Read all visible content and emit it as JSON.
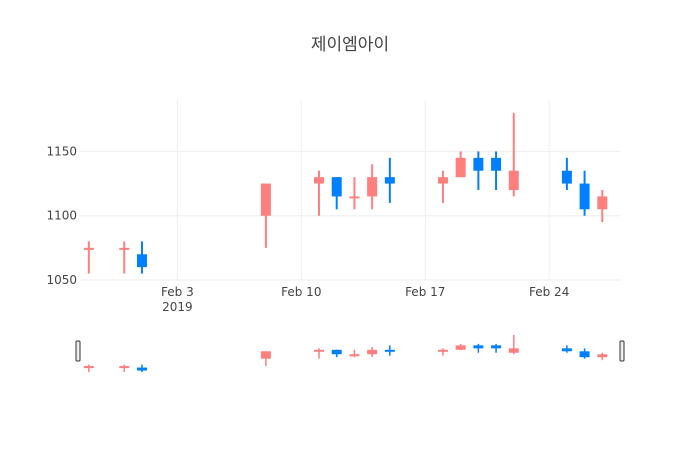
{
  "chart_data": {
    "type": "candlestick",
    "title": "제이엠아이",
    "xlabel": "",
    "ylabel": "",
    "x_range": [
      "2019-01-29",
      "2019-02-28"
    ],
    "ylim": [
      1050,
      1190
    ],
    "x_ticks": [
      {
        "date": "2019-02-03",
        "label": "Feb 3",
        "sublabel": "2019"
      },
      {
        "date": "2019-02-10",
        "label": "Feb 10",
        "sublabel": ""
      },
      {
        "date": "2019-02-17",
        "label": "Feb 17",
        "sublabel": ""
      },
      {
        "date": "2019-02-24",
        "label": "Feb 24",
        "sublabel": ""
      }
    ],
    "y_ticks": [
      1050,
      1100,
      1150
    ],
    "grid": true,
    "increasing_color": "#ff7f7f",
    "decreasing_color": "#0080ff",
    "rangeslider": true,
    "candles": [
      {
        "date": "2019-01-29",
        "open": 1075,
        "high": 1080,
        "low": 1055,
        "close": 1075
      },
      {
        "date": "2019-01-31",
        "open": 1075,
        "high": 1080,
        "low": 1055,
        "close": 1075
      },
      {
        "date": "2019-02-01",
        "open": 1070,
        "high": 1080,
        "low": 1055,
        "close": 1060
      },
      {
        "date": "2019-02-08",
        "open": 1100,
        "high": 1125,
        "low": 1075,
        "close": 1125
      },
      {
        "date": "2019-02-11",
        "open": 1125,
        "high": 1135,
        "low": 1100,
        "close": 1130
      },
      {
        "date": "2019-02-12",
        "open": 1130,
        "high": 1130,
        "low": 1105,
        "close": 1115
      },
      {
        "date": "2019-02-13",
        "open": 1115,
        "high": 1130,
        "low": 1105,
        "close": 1115
      },
      {
        "date": "2019-02-14",
        "open": 1115,
        "high": 1140,
        "low": 1105,
        "close": 1130
      },
      {
        "date": "2019-02-15",
        "open": 1130,
        "high": 1145,
        "low": 1110,
        "close": 1125
      },
      {
        "date": "2019-02-18",
        "open": 1125,
        "high": 1135,
        "low": 1110,
        "close": 1130
      },
      {
        "date": "2019-02-19",
        "open": 1130,
        "high": 1150,
        "low": 1130,
        "close": 1145
      },
      {
        "date": "2019-02-20",
        "open": 1145,
        "high": 1150,
        "low": 1120,
        "close": 1135
      },
      {
        "date": "2019-02-21",
        "open": 1145,
        "high": 1150,
        "low": 1120,
        "close": 1135
      },
      {
        "date": "2019-02-22",
        "open": 1120,
        "high": 1180,
        "low": 1115,
        "close": 1135
      },
      {
        "date": "2019-02-25",
        "open": 1135,
        "high": 1145,
        "low": 1120,
        "close": 1125
      },
      {
        "date": "2019-02-26",
        "open": 1125,
        "high": 1135,
        "low": 1100,
        "close": 1105
      },
      {
        "date": "2019-02-27",
        "open": 1105,
        "high": 1120,
        "low": 1095,
        "close": 1115
      }
    ]
  }
}
